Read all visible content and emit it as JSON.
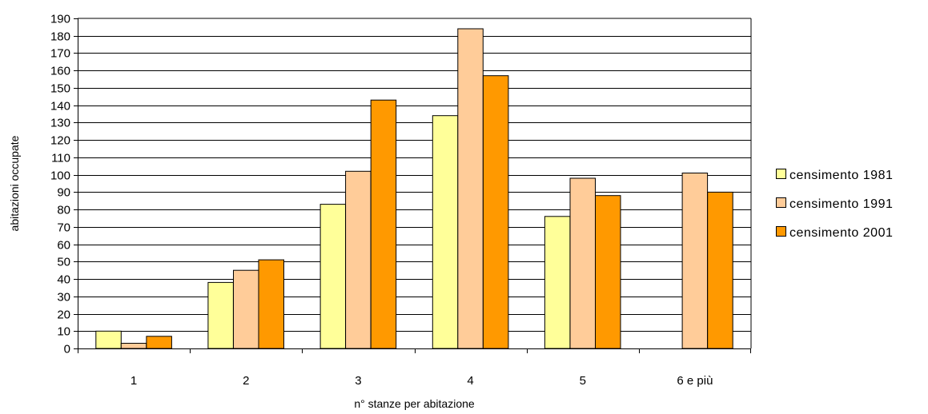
{
  "chart_data": {
    "type": "bar",
    "title": "",
    "xlabel": "n° stanze per abitazione",
    "ylabel": "abitazioni occupate",
    "categories": [
      "1",
      "2",
      "3",
      "4",
      "5",
      "6 e più"
    ],
    "series": [
      {
        "name": "censimento 1981",
        "color": "#ffff99",
        "values": [
          10,
          38,
          83,
          134,
          76,
          0
        ]
      },
      {
        "name": "censimento 1991",
        "color": "#ffcc99",
        "values": [
          3,
          45,
          102,
          184,
          98,
          101
        ]
      },
      {
        "name": "censimento 2001",
        "color": "#ff9900",
        "values": [
          7,
          51,
          143,
          157,
          88,
          90
        ]
      }
    ],
    "ylim": [
      0,
      190
    ],
    "yticks": [
      0,
      10,
      20,
      30,
      40,
      50,
      60,
      70,
      80,
      90,
      100,
      110,
      120,
      130,
      140,
      150,
      160,
      170,
      180,
      190
    ],
    "grid": true,
    "legend": "right"
  }
}
